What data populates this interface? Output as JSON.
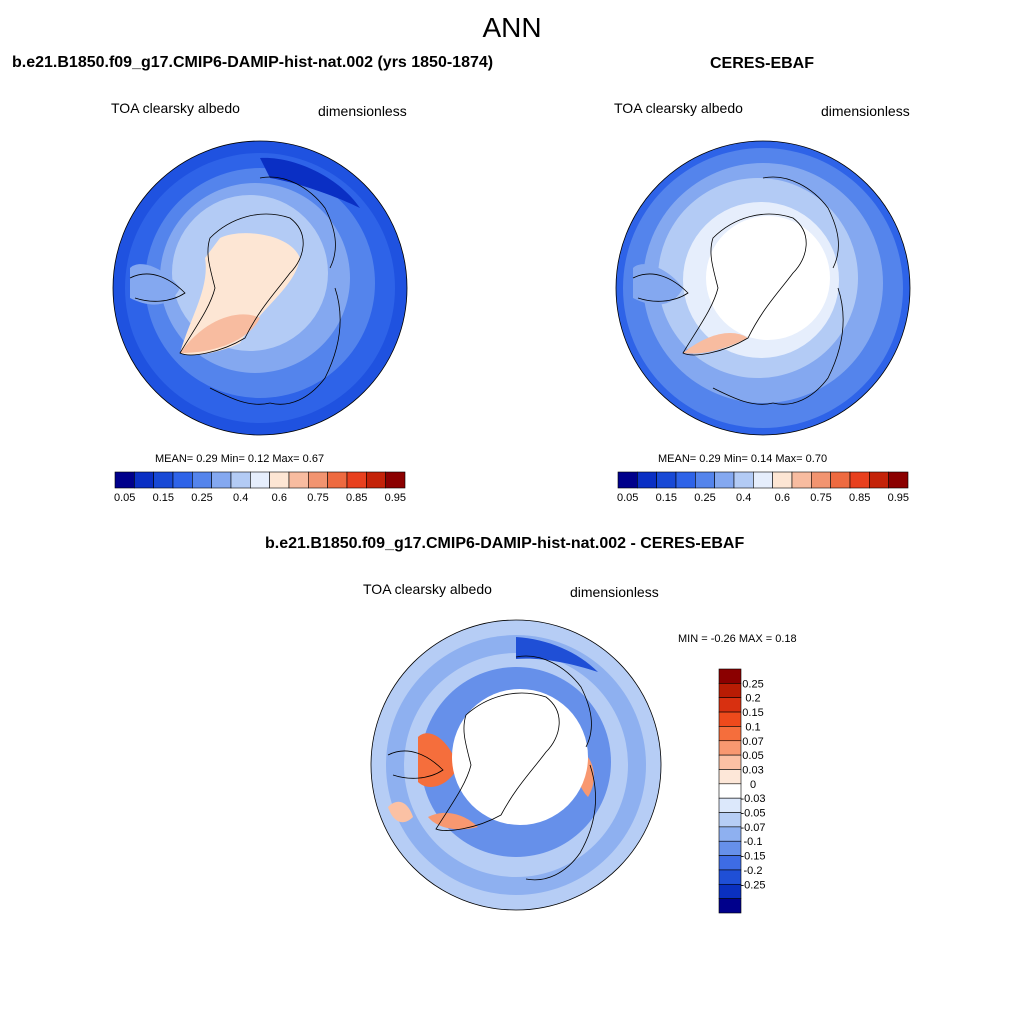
{
  "main_title": "ANN",
  "panels": [
    {
      "title": "b.e21.B1850.f09_g17.CMIP6-DAMIP-hist-nat.002 (yrs 1850-1874)",
      "variable": "TOA clearsky albedo",
      "units": "dimensionless",
      "stats": "MEAN=   0.29  Min=   0.12  Max=   0.67"
    },
    {
      "title": "CERES-EBAF",
      "variable": "TOA clearsky albedo",
      "units": "dimensionless",
      "stats": "MEAN=   0.29  Min=   0.14  Max=   0.70"
    },
    {
      "title": "b.e21.B1850.f09_g17.CMIP6-DAMIP-hist-nat.002 - CERES-EBAF",
      "variable": "TOA clearsky albedo",
      "units": "dimensionless",
      "stats": "MIN =  -0.26 MAX =   0.18"
    }
  ],
  "colorbar_abs": {
    "colors": [
      "#00008b",
      "#0a2fc4",
      "#1849d6",
      "#2e63e8",
      "#5484ec",
      "#84a8f0",
      "#b3cbf5",
      "#e6eefc",
      "#fde6d4",
      "#f8bca0",
      "#f29470",
      "#ee6a40",
      "#e8401e",
      "#c42208",
      "#8b0000"
    ],
    "labels": [
      "0.05",
      "0.15",
      "0.25",
      "0.4",
      "0.6",
      "0.75",
      "0.85",
      "0.95"
    ]
  },
  "colorbar_diff": {
    "colors": [
      "#8b0000",
      "#b81c04",
      "#d83010",
      "#ee4a1c",
      "#f56e3c",
      "#f89870",
      "#fbc1a4",
      "#fde7d8",
      "#ffffff",
      "#dce8fb",
      "#b6cdf5",
      "#8eb0f0",
      "#6690ea",
      "#3e6ce4",
      "#1f4fd6",
      "#0a30bf",
      "#00008b"
    ],
    "labels": [
      "0.25",
      "0.2",
      "0.15",
      "0.1",
      "0.07",
      "0.05",
      "0.03",
      "0",
      "-0.03",
      "-0.05",
      "-0.07",
      "-0.1",
      "-0.15",
      "-0.2",
      "-0.25"
    ]
  }
}
